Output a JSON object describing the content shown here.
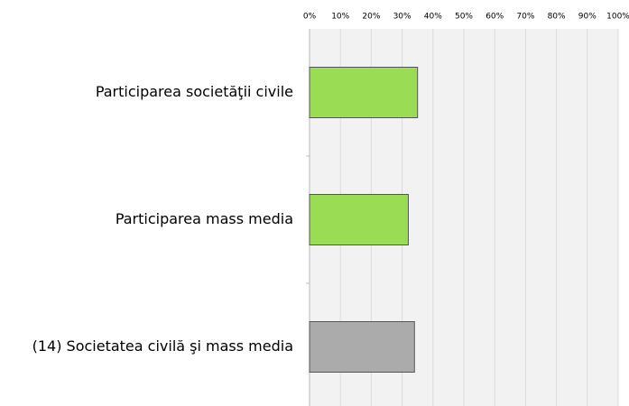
{
  "chart_data": {
    "type": "bar",
    "orientation": "horizontal",
    "categories": [
      "Participarea societăţii civile",
      "Participarea mass media",
      "(14) Societatea civilă şi mass media"
    ],
    "values": [
      35,
      32,
      34
    ],
    "colors": [
      "#9bdc55",
      "#9bdc55",
      "#ababab"
    ],
    "xlim": [
      0,
      100
    ],
    "xticks": [
      {
        "value": 0,
        "label": "0%"
      },
      {
        "value": 10,
        "label": "10%"
      },
      {
        "value": 20,
        "label": "20%"
      },
      {
        "value": 30,
        "label": "30%"
      },
      {
        "value": 40,
        "label": "40%"
      },
      {
        "value": 50,
        "label": "50%"
      },
      {
        "value": 60,
        "label": "60%"
      },
      {
        "value": 70,
        "label": "70%"
      },
      {
        "value": 80,
        "label": "80%"
      },
      {
        "value": 90,
        "label": "90%"
      },
      {
        "value": 100,
        "label": "100%"
      }
    ],
    "grid": true
  }
}
